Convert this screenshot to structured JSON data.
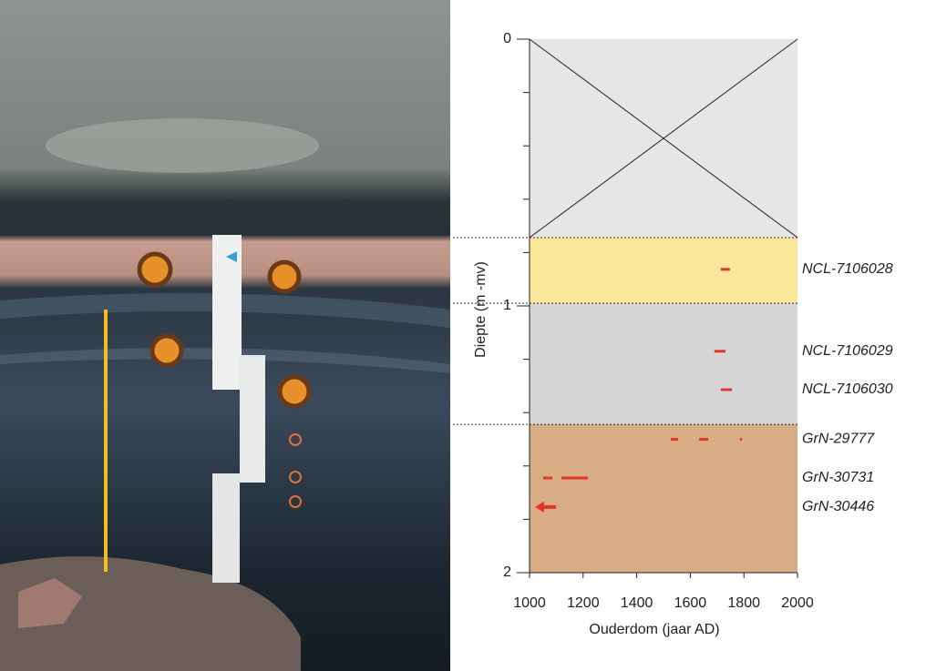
{
  "chart_data": {
    "type": "depth-profile",
    "x_label": "Ouderdom (jaar AD)",
    "y_label": "Diepte (m -mv)",
    "xlim": [
      1000,
      2000
    ],
    "xticks": [
      1000,
      1200,
      1400,
      1600,
      1800,
      2000
    ],
    "ylim": [
      0,
      2
    ],
    "yticks": [
      0,
      1,
      2
    ],
    "yminor": [
      0.2,
      0.4,
      0.6,
      0.8,
      1.2,
      1.4,
      1.6,
      1.8
    ],
    "range_color": "#e8332a",
    "layers": [
      {
        "top": 0,
        "bottom": 0.744,
        "color": "#e6e6e6",
        "crossed": true
      },
      {
        "top": 0.744,
        "bottom": 0.99,
        "color": "#fbe79a"
      },
      {
        "top": 0.99,
        "bottom": 1.444,
        "color": "#d6d6d6"
      },
      {
        "top": 1.444,
        "bottom": 2,
        "color": "#d8ad86"
      }
    ],
    "samples": [
      {
        "label": "NCL-7106028",
        "depth": 0.863,
        "ranges": [
          [
            1714,
            1748
          ]
        ]
      },
      {
        "label": "NCL-7106029",
        "depth": 1.17,
        "ranges": [
          [
            1690,
            1731
          ]
        ]
      },
      {
        "label": "NCL-7106030",
        "depth": 1.314,
        "ranges": [
          [
            1714,
            1755
          ]
        ]
      },
      {
        "label": "GrN-29777",
        "depth": 1.5,
        "ranges": [
          [
            1527,
            1554
          ],
          [
            1633,
            1667
          ],
          [
            1786,
            1793
          ]
        ]
      },
      {
        "label": "GrN-30731",
        "depth": 1.645,
        "ranges": [
          [
            1051,
            1085
          ],
          [
            1119,
            1218
          ]
        ]
      },
      {
        "label": "GrN-30446",
        "depth": 1.754,
        "ranges": [
          [
            1020,
            1099
          ]
        ],
        "arrow": true
      }
    ]
  }
}
